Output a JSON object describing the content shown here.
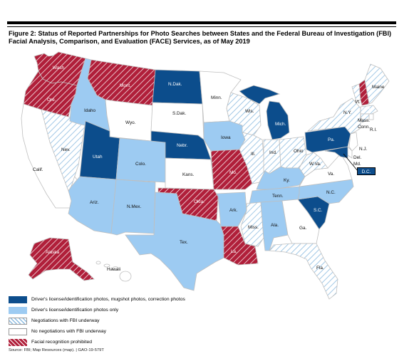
{
  "title": "Figure 2: Status of Reported Partnerships for Photo Searches between States and the Federal Bureau of Investigation (FBI) Facial Analysis, Comparison, and Evaluation (FACE) Services, as of May 2019",
  "colors": {
    "dark_blue": "#0c4d8c",
    "light_blue": "#9dcbf2",
    "hatch_blue": "#8cbbe0",
    "hatch_red": "#b01f3a",
    "white": "#ffffff"
  },
  "legend": [
    {
      "key": "dark",
      "label": "Driver's license/identification photos, mugshot photos, correction photos"
    },
    {
      "key": "light",
      "label": "Driver's license/identification photos only"
    },
    {
      "key": "nego",
      "label": "Negotiations with FBI underway"
    },
    {
      "key": "none",
      "label": "No negotiations with FBI underway"
    },
    {
      "key": "prohib",
      "label": "Facial recognition prohibited"
    }
  ],
  "states": {
    "wash": "Wash",
    "ore": "Ore.",
    "calif": "Calif.",
    "nev": "Nev.",
    "idaho": "Idaho",
    "mont": "Mont.",
    "wyo": "Wyo.",
    "utah": "Utah",
    "colo": "Colo.",
    "ariz": "Ariz.",
    "nmex": "N.Mex.",
    "ndak": "N.Dak.",
    "sdak": "S.Dak.",
    "nebr": "Nebr.",
    "kans": "Kans.",
    "okla": "Okla.",
    "tex": "Tex.",
    "minn": "Minn.",
    "iowa": "Iowa",
    "mo": "Mo.",
    "ark": "Ark.",
    "la": "La.",
    "wis": "Wis.",
    "ill": "Ill.",
    "mich": "Mich.",
    "ind": "Ind.",
    "ohio": "Ohio",
    "ky": "Ky.",
    "tenn": "Tenn.",
    "miss": "Miss.",
    "ala": "Ala.",
    "ga": "Ga.",
    "fla": "Fla.",
    "sc": "S.C.",
    "nc": "N.C.",
    "va": "Va.",
    "wva": "W.Va.",
    "pa": "Pa.",
    "ny": "N.Y.",
    "vt": "Vt.",
    "nh": "N.H.",
    "maine": "Maine",
    "mass": "Mass.",
    "ri": "R.I.",
    "conn": "Conn.",
    "nj": "N.J.",
    "del": "Del.",
    "md": "Md.",
    "dc": "D.C.",
    "alaska": "Alaska",
    "hawaii": "Hawaii"
  },
  "source": "Source: FBI; Map Resources (map).  |  GAO-19-579T"
}
